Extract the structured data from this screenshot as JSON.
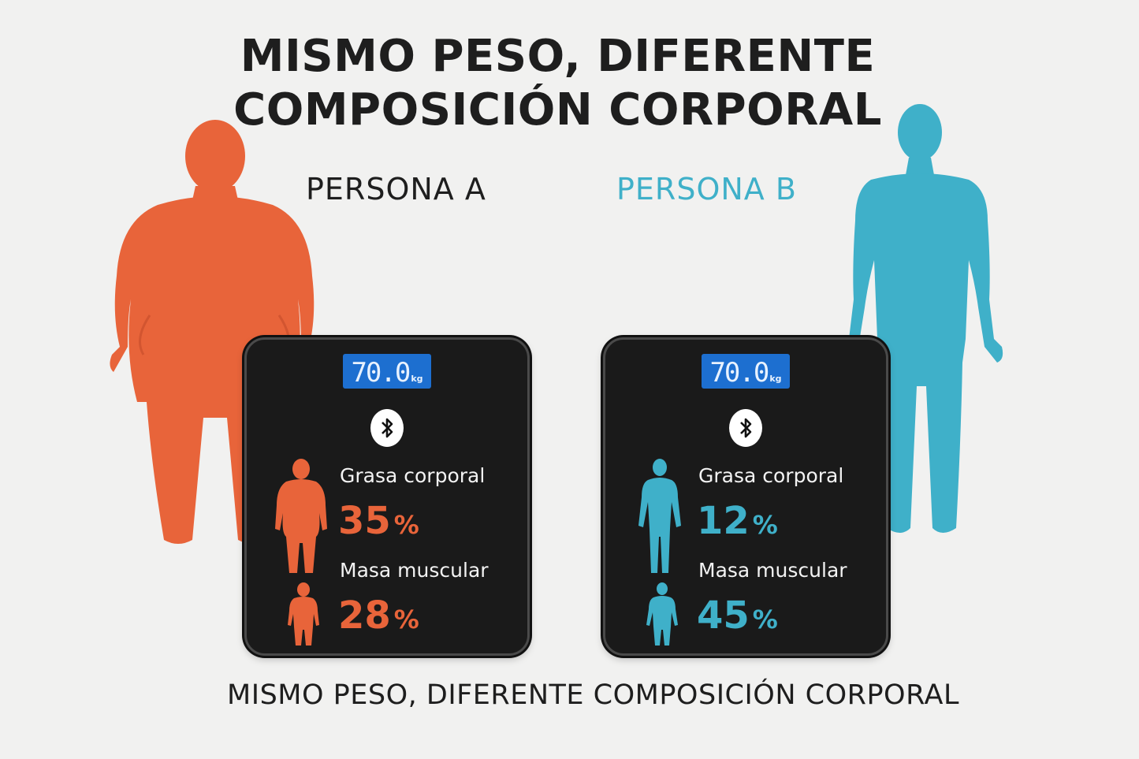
{
  "title_line1": "MISMO PESO, DIFERENTE",
  "title_line2": "COMPOSICIÓN CORPORAL",
  "footer": "MISMO PESO, DIFERENTE COMPOSICIÓN CORPORAL",
  "colors": {
    "person_a": "#e8643a",
    "person_b": "#3fb0c9",
    "scale": "#1a1a1a",
    "display": "#1d6fd0",
    "text": "#1e1e1e"
  },
  "person_a": {
    "label": "PERSONA A",
    "weight": "70.0",
    "unit": "kg",
    "icon": "bluetooth-icon",
    "fat_label": "Grasa corporal",
    "fat_value": "35",
    "fat_unit": "%",
    "muscle_label": "Masa muscular",
    "muscle_value": "28",
    "muscle_unit": "%"
  },
  "person_b": {
    "label": "PERSONA B",
    "weight": "70.0",
    "unit": "kg",
    "icon": "bluetooth-icon",
    "fat_label": "Grasa corporal",
    "fat_value": "12",
    "fat_unit": "%",
    "muscle_label": "Masa muscular",
    "muscle_value": "45",
    "muscle_unit": "%"
  }
}
